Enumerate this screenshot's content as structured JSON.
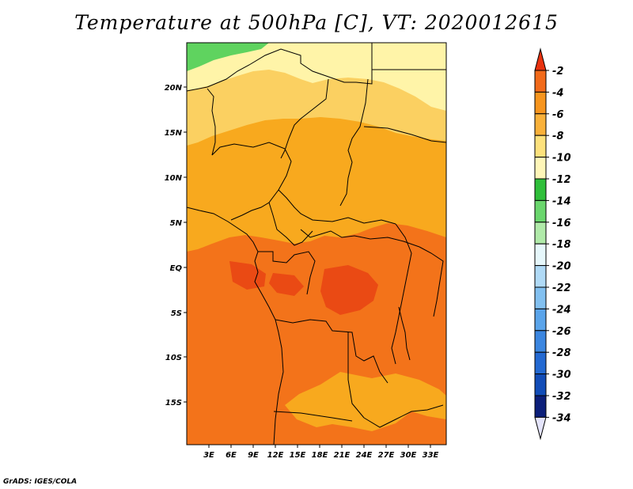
{
  "title": "Temperature at 500hPa [C], VT: 2020012615",
  "credit": "GrADS: IGES/COLA",
  "map": {
    "projection": "latlon",
    "lon_range": [
      0,
      35
    ],
    "lat_range": [
      -20,
      24
    ],
    "x_ticks": [
      "3E",
      "6E",
      "9E",
      "12E",
      "15E",
      "18E",
      "21E",
      "24E",
      "27E",
      "30E",
      "33E"
    ],
    "y_ticks": [
      "20N",
      "15N",
      "10N",
      "5N",
      "EQ",
      "5S",
      "10S",
      "15S"
    ],
    "field_description": "500hPa temperature over Central Africa",
    "region_colors": {
      "north_fringe_green": "#5fd35f",
      "yellow_band": "#fff4a8",
      "light_orange": "#fbd061",
      "orange": "#f8a91e",
      "dark_orange": "#f3731a",
      "red_orange": "#ea4a14"
    }
  },
  "colorbar": {
    "labels": [
      "-2",
      "-4",
      "-6",
      "-8",
      "-10",
      "-12",
      "-14",
      "-16",
      "-18",
      "-20",
      "-22",
      "-24",
      "-26",
      "-28",
      "-30",
      "-32",
      "-34"
    ],
    "colors": [
      "#e8320f",
      "#f26a1a",
      "#f7951e",
      "#f9b13a",
      "#fde17c",
      "#fff6b8",
      "#2fbf3a",
      "#6ad66d",
      "#b0eaa9",
      "#e6f7fb",
      "#b0daf6",
      "#82c0f0",
      "#5aa4ea",
      "#3b86e0",
      "#2369d2",
      "#124db8",
      "#0c1f7a",
      "#e4e4fb"
    ]
  }
}
